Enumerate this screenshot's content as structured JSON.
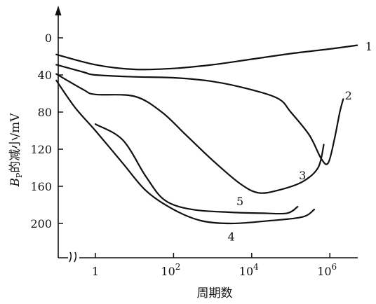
{
  "chart_data": {
    "type": "line",
    "title": "",
    "xlabel": "周期数",
    "ylabel_main": "B",
    "ylabel_sub": "P",
    "ylabel_rest": "的减小/mV",
    "x_scale": "log10",
    "xlim": [
      0.05,
      100000000
    ],
    "ylim": [
      250,
      -20
    ],
    "y_inverted": true,
    "x_axis_break": true,
    "x_ticks": [
      {
        "value": 1,
        "base": "1",
        "exp": ""
      },
      {
        "value": 100,
        "base": "10",
        "exp": "2"
      },
      {
        "value": 10000,
        "base": "10",
        "exp": "4"
      },
      {
        "value": 1000000,
        "base": "10",
        "exp": "6"
      }
    ],
    "y_ticks": [
      {
        "value": 0,
        "label": "0"
      },
      {
        "value": 40,
        "label": "40"
      },
      {
        "value": 80,
        "label": "80"
      },
      {
        "value": 120,
        "label": "120"
      },
      {
        "value": 160,
        "label": "160"
      },
      {
        "value": 200,
        "label": "200"
      }
    ],
    "series": [
      {
        "name": "1",
        "points": [
          [
            0.1,
            18
          ],
          [
            1,
            29
          ],
          [
            10,
            34
          ],
          [
            100,
            33
          ],
          [
            1000,
            29
          ],
          [
            10000,
            23
          ],
          [
            100000,
            17
          ],
          [
            1000000,
            12
          ],
          [
            5000000,
            8
          ]
        ]
      },
      {
        "name": "2",
        "points": [
          [
            0.1,
            29
          ],
          [
            0.5,
            37
          ],
          [
            1,
            40
          ],
          [
            10,
            42
          ],
          [
            100,
            43
          ],
          [
            1000,
            47
          ],
          [
            10000,
            56
          ],
          [
            50000,
            66
          ],
          [
            100000,
            80
          ],
          [
            300000,
            105
          ],
          [
            600000,
            130
          ],
          [
            900000,
            135
          ],
          [
            1300000,
            110
          ],
          [
            1800000,
            80
          ],
          [
            2200000,
            66
          ]
        ]
      },
      {
        "name": "3",
        "points": [
          [
            0.1,
            39
          ],
          [
            0.5,
            56
          ],
          [
            1,
            61
          ],
          [
            10,
            63
          ],
          [
            50,
            80
          ],
          [
            200,
            104
          ],
          [
            1000,
            132
          ],
          [
            5000,
            157
          ],
          [
            15000,
            167
          ],
          [
            50000,
            164
          ],
          [
            200000,
            155
          ],
          [
            500000,
            140
          ],
          [
            700000,
            115
          ]
        ]
      },
      {
        "name": "4",
        "points": [
          [
            0.1,
            46
          ],
          [
            0.3,
            75
          ],
          [
            1,
            100
          ],
          [
            5,
            135
          ],
          [
            20,
            165
          ],
          [
            100,
            185
          ],
          [
            500,
            197
          ],
          [
            3000,
            200
          ],
          [
            30000,
            197
          ],
          [
            200000,
            193
          ],
          [
            400000,
            185
          ]
        ]
      },
      {
        "name": "5",
        "points": [
          [
            1,
            93
          ],
          [
            5,
            110
          ],
          [
            20,
            150
          ],
          [
            60,
            175
          ],
          [
            300,
            185
          ],
          [
            3000,
            188
          ],
          [
            20000,
            189
          ],
          [
            80000,
            189
          ],
          [
            150000,
            182
          ]
        ]
      }
    ],
    "label_anchors": [
      {
        "name": "1",
        "x": 10000000,
        "y": 9
      },
      {
        "name": "2",
        "x": 3000000,
        "y": 62
      },
      {
        "name": "3",
        "x": 200000,
        "y": 148
      },
      {
        "name": "4",
        "x": 3000,
        "y": 214
      },
      {
        "name": "5",
        "x": 5000,
        "y": 176
      }
    ]
  }
}
